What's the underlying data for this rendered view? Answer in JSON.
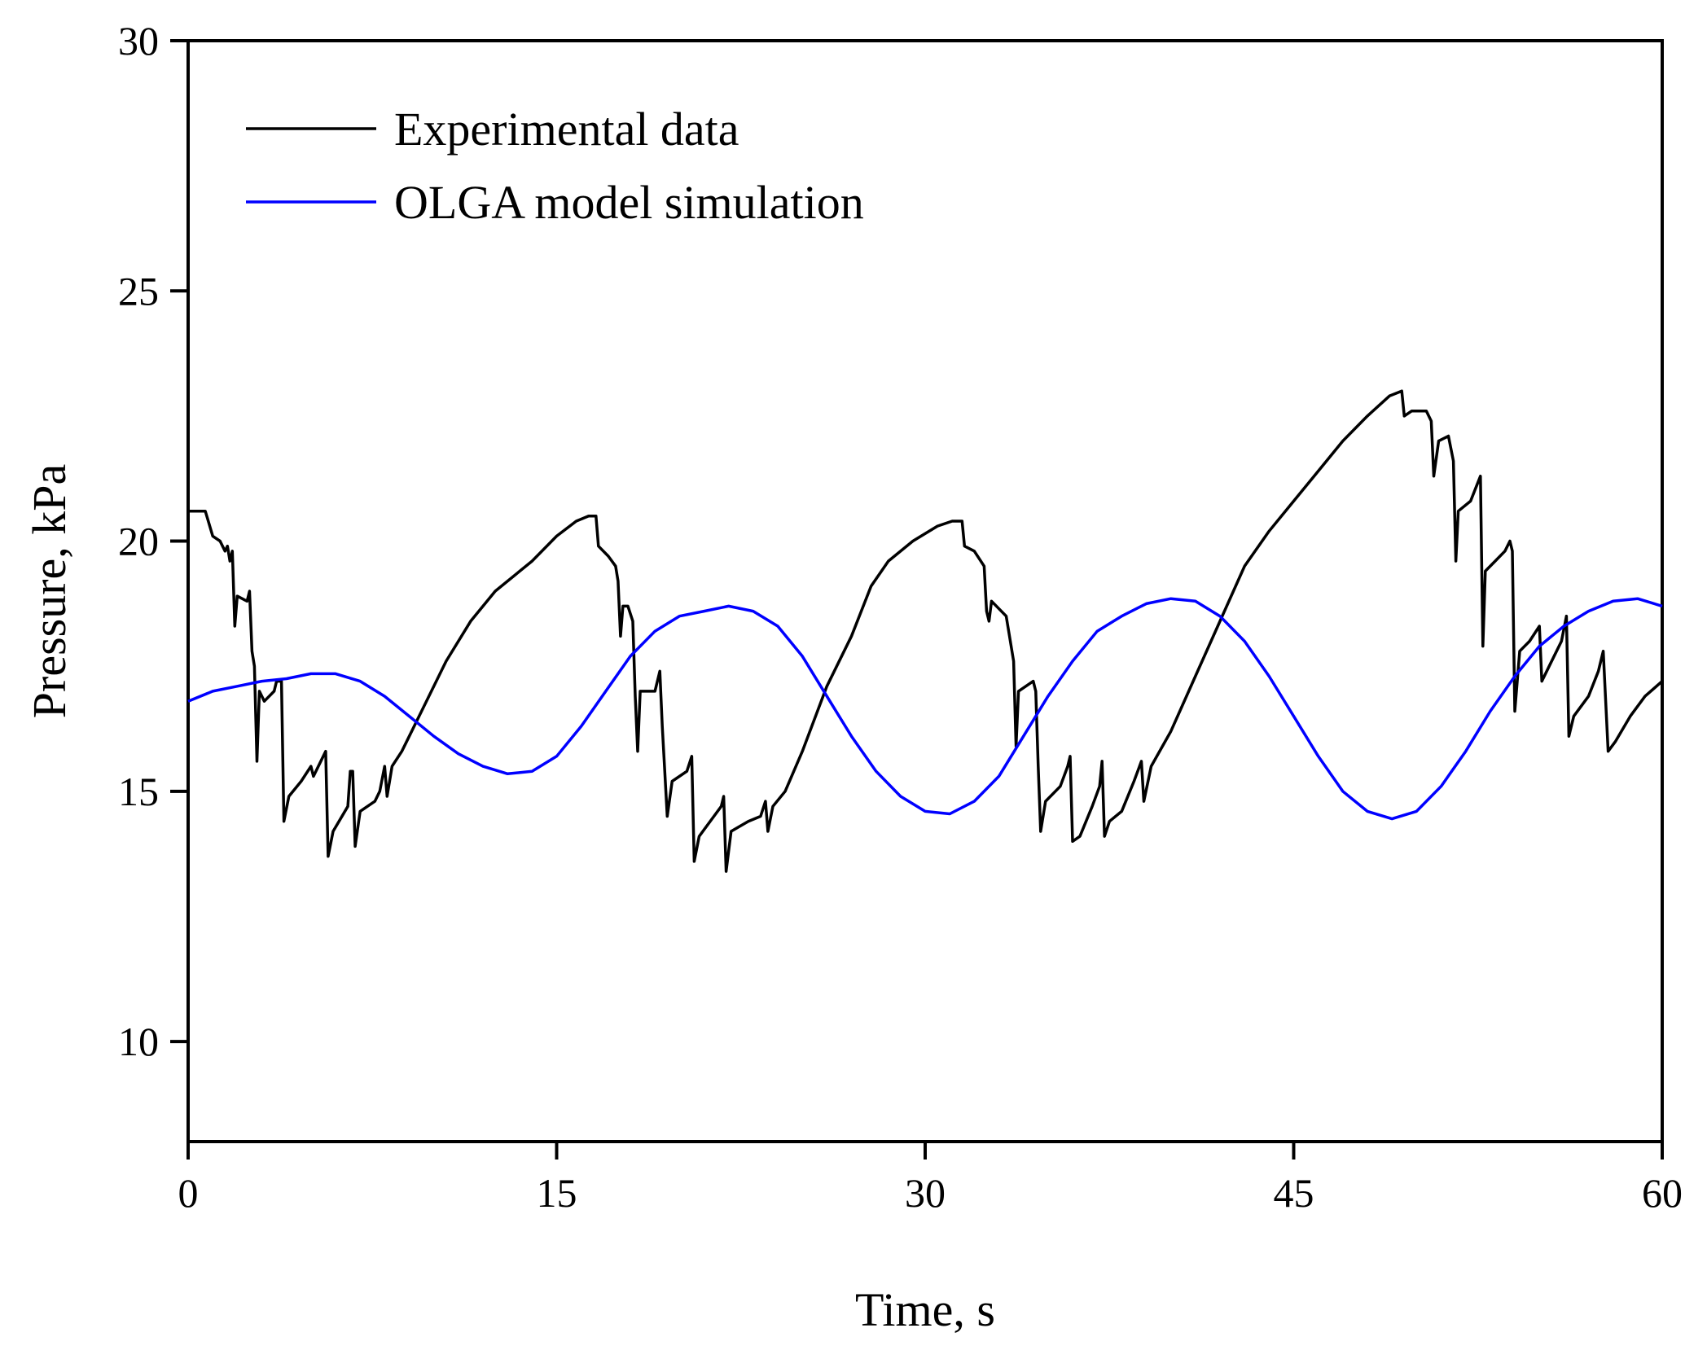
{
  "chart_data": {
    "type": "line",
    "title": "",
    "xlabel": "Time, s",
    "ylabel": "Pressure, kPa",
    "xlim": [
      0,
      60
    ],
    "ylim": [
      8,
      30
    ],
    "xticks": [
      0,
      15,
      30,
      45,
      60
    ],
    "yticks": [
      10,
      15,
      20,
      25,
      30
    ],
    "grid": false,
    "legend_position": "top-left",
    "series": [
      {
        "name": "Experimental data",
        "color": "#000000",
        "points": [
          [
            0,
            20.6
          ],
          [
            0.7,
            20.6
          ],
          [
            1.0,
            20.1
          ],
          [
            1.3,
            20.0
          ],
          [
            1.5,
            19.8
          ],
          [
            1.6,
            19.9
          ],
          [
            1.7,
            19.6
          ],
          [
            1.8,
            19.8
          ],
          [
            1.9,
            18.3
          ],
          [
            2.0,
            18.9
          ],
          [
            2.4,
            18.8
          ],
          [
            2.5,
            19.0
          ],
          [
            2.6,
            17.8
          ],
          [
            2.7,
            17.5
          ],
          [
            2.8,
            15.6
          ],
          [
            2.9,
            17.0
          ],
          [
            3.1,
            16.8
          ],
          [
            3.5,
            17.0
          ],
          [
            3.6,
            17.2
          ],
          [
            3.8,
            17.2
          ],
          [
            3.9,
            14.4
          ],
          [
            4.1,
            14.9
          ],
          [
            4.6,
            15.2
          ],
          [
            5.0,
            15.5
          ],
          [
            5.1,
            15.3
          ],
          [
            5.5,
            15.7
          ],
          [
            5.6,
            15.8
          ],
          [
            5.7,
            13.7
          ],
          [
            5.9,
            14.2
          ],
          [
            6.5,
            14.7
          ],
          [
            6.6,
            15.4
          ],
          [
            6.7,
            15.4
          ],
          [
            6.8,
            13.9
          ],
          [
            7.0,
            14.6
          ],
          [
            7.6,
            14.8
          ],
          [
            7.8,
            15.0
          ],
          [
            8.0,
            15.5
          ],
          [
            8.1,
            14.9
          ],
          [
            8.3,
            15.5
          ],
          [
            8.7,
            15.8
          ],
          [
            9.5,
            16.6
          ],
          [
            10.5,
            17.6
          ],
          [
            11.5,
            18.4
          ],
          [
            12.5,
            19.0
          ],
          [
            14.0,
            19.6
          ],
          [
            15.0,
            20.1
          ],
          [
            15.8,
            20.4
          ],
          [
            16.3,
            20.5
          ],
          [
            16.6,
            20.5
          ],
          [
            16.7,
            19.9
          ],
          [
            17.1,
            19.7
          ],
          [
            17.4,
            19.5
          ],
          [
            17.5,
            19.2
          ],
          [
            17.6,
            18.1
          ],
          [
            17.7,
            18.7
          ],
          [
            17.9,
            18.7
          ],
          [
            18.1,
            18.4
          ],
          [
            18.2,
            16.9
          ],
          [
            18.3,
            15.8
          ],
          [
            18.4,
            17.0
          ],
          [
            19.0,
            17.0
          ],
          [
            19.2,
            17.4
          ],
          [
            19.3,
            16.3
          ],
          [
            19.5,
            14.5
          ],
          [
            19.7,
            15.2
          ],
          [
            20.3,
            15.4
          ],
          [
            20.5,
            15.7
          ],
          [
            20.6,
            13.6
          ],
          [
            20.8,
            14.1
          ],
          [
            21.4,
            14.5
          ],
          [
            21.7,
            14.7
          ],
          [
            21.8,
            14.9
          ],
          [
            21.9,
            13.4
          ],
          [
            22.1,
            14.2
          ],
          [
            22.8,
            14.4
          ],
          [
            23.3,
            14.5
          ],
          [
            23.5,
            14.8
          ],
          [
            23.6,
            14.2
          ],
          [
            23.8,
            14.7
          ],
          [
            24.3,
            15.0
          ],
          [
            25.0,
            15.8
          ],
          [
            26.0,
            17.1
          ],
          [
            27.0,
            18.1
          ],
          [
            27.8,
            19.1
          ],
          [
            28.5,
            19.6
          ],
          [
            29.5,
            20.0
          ],
          [
            30.5,
            20.3
          ],
          [
            31.1,
            20.4
          ],
          [
            31.5,
            20.4
          ],
          [
            31.6,
            19.9
          ],
          [
            32.0,
            19.8
          ],
          [
            32.4,
            19.5
          ],
          [
            32.5,
            18.6
          ],
          [
            32.6,
            18.4
          ],
          [
            32.7,
            18.8
          ],
          [
            33.3,
            18.5
          ],
          [
            33.6,
            17.6
          ],
          [
            33.7,
            15.9
          ],
          [
            33.8,
            17.0
          ],
          [
            34.4,
            17.2
          ],
          [
            34.5,
            17.0
          ],
          [
            34.6,
            15.5
          ],
          [
            34.7,
            14.2
          ],
          [
            34.9,
            14.8
          ],
          [
            35.5,
            15.1
          ],
          [
            35.8,
            15.5
          ],
          [
            35.9,
            15.7
          ],
          [
            36.0,
            14.0
          ],
          [
            36.3,
            14.1
          ],
          [
            36.8,
            14.7
          ],
          [
            37.1,
            15.1
          ],
          [
            37.2,
            15.6
          ],
          [
            37.3,
            14.1
          ],
          [
            37.5,
            14.4
          ],
          [
            38.0,
            14.6
          ],
          [
            38.5,
            15.2
          ],
          [
            38.8,
            15.6
          ],
          [
            38.9,
            14.8
          ],
          [
            39.2,
            15.5
          ],
          [
            40.0,
            16.2
          ],
          [
            41.0,
            17.3
          ],
          [
            42.0,
            18.4
          ],
          [
            43.0,
            19.5
          ],
          [
            44.0,
            20.2
          ],
          [
            45.0,
            20.8
          ],
          [
            46.0,
            21.4
          ],
          [
            47.0,
            22.0
          ],
          [
            48.0,
            22.5
          ],
          [
            48.9,
            22.9
          ],
          [
            49.4,
            23.0
          ],
          [
            49.5,
            22.5
          ],
          [
            49.8,
            22.6
          ],
          [
            50.4,
            22.6
          ],
          [
            50.6,
            22.4
          ],
          [
            50.7,
            21.3
          ],
          [
            50.9,
            22.0
          ],
          [
            51.3,
            22.1
          ],
          [
            51.5,
            21.6
          ],
          [
            51.6,
            19.6
          ],
          [
            51.7,
            20.6
          ],
          [
            52.2,
            20.8
          ],
          [
            52.6,
            21.3
          ],
          [
            52.7,
            17.9
          ],
          [
            52.8,
            19.4
          ],
          [
            53.2,
            19.6
          ],
          [
            53.6,
            19.8
          ],
          [
            53.8,
            20.0
          ],
          [
            53.9,
            19.8
          ],
          [
            54.0,
            16.6
          ],
          [
            54.2,
            17.8
          ],
          [
            54.6,
            18.0
          ],
          [
            55.0,
            18.3
          ],
          [
            55.1,
            17.2
          ],
          [
            55.4,
            17.5
          ],
          [
            55.9,
            18.0
          ],
          [
            56.1,
            18.5
          ],
          [
            56.2,
            16.1
          ],
          [
            56.4,
            16.5
          ],
          [
            57.0,
            16.9
          ],
          [
            57.4,
            17.4
          ],
          [
            57.6,
            17.8
          ],
          [
            57.8,
            15.8
          ],
          [
            58.1,
            16.0
          ],
          [
            58.7,
            16.5
          ],
          [
            59.3,
            16.9
          ],
          [
            60.0,
            17.2
          ]
        ]
      },
      {
        "name": "OLGA model simulation",
        "color": "#0000ff",
        "points": [
          [
            0,
            16.8
          ],
          [
            1,
            17.0
          ],
          [
            2,
            17.1
          ],
          [
            3,
            17.2
          ],
          [
            4,
            17.25
          ],
          [
            5,
            17.35
          ],
          [
            6,
            17.35
          ],
          [
            7,
            17.2
          ],
          [
            8,
            16.9
          ],
          [
            9,
            16.5
          ],
          [
            10,
            16.1
          ],
          [
            11,
            15.75
          ],
          [
            12,
            15.5
          ],
          [
            13,
            15.35
          ],
          [
            14,
            15.4
          ],
          [
            15,
            15.7
          ],
          [
            16,
            16.3
          ],
          [
            17,
            17.0
          ],
          [
            18,
            17.7
          ],
          [
            19,
            18.2
          ],
          [
            20,
            18.5
          ],
          [
            21,
            18.6
          ],
          [
            22,
            18.7
          ],
          [
            23,
            18.6
          ],
          [
            24,
            18.3
          ],
          [
            25,
            17.7
          ],
          [
            26,
            16.9
          ],
          [
            27,
            16.1
          ],
          [
            28,
            15.4
          ],
          [
            29,
            14.9
          ],
          [
            30,
            14.6
          ],
          [
            31,
            14.55
          ],
          [
            32,
            14.8
          ],
          [
            33,
            15.3
          ],
          [
            34,
            16.1
          ],
          [
            35,
            16.9
          ],
          [
            36,
            17.6
          ],
          [
            37,
            18.2
          ],
          [
            38,
            18.5
          ],
          [
            39,
            18.75
          ],
          [
            40,
            18.85
          ],
          [
            41,
            18.8
          ],
          [
            42,
            18.5
          ],
          [
            43,
            18.0
          ],
          [
            44,
            17.3
          ],
          [
            45,
            16.5
          ],
          [
            46,
            15.7
          ],
          [
            47,
            15.0
          ],
          [
            48,
            14.6
          ],
          [
            49,
            14.45
          ],
          [
            50,
            14.6
          ],
          [
            51,
            15.1
          ],
          [
            52,
            15.8
          ],
          [
            53,
            16.6
          ],
          [
            54,
            17.3
          ],
          [
            55,
            17.9
          ],
          [
            56,
            18.3
          ],
          [
            57,
            18.6
          ],
          [
            58,
            18.8
          ],
          [
            59,
            18.85
          ],
          [
            60,
            18.7
          ]
        ]
      }
    ]
  }
}
